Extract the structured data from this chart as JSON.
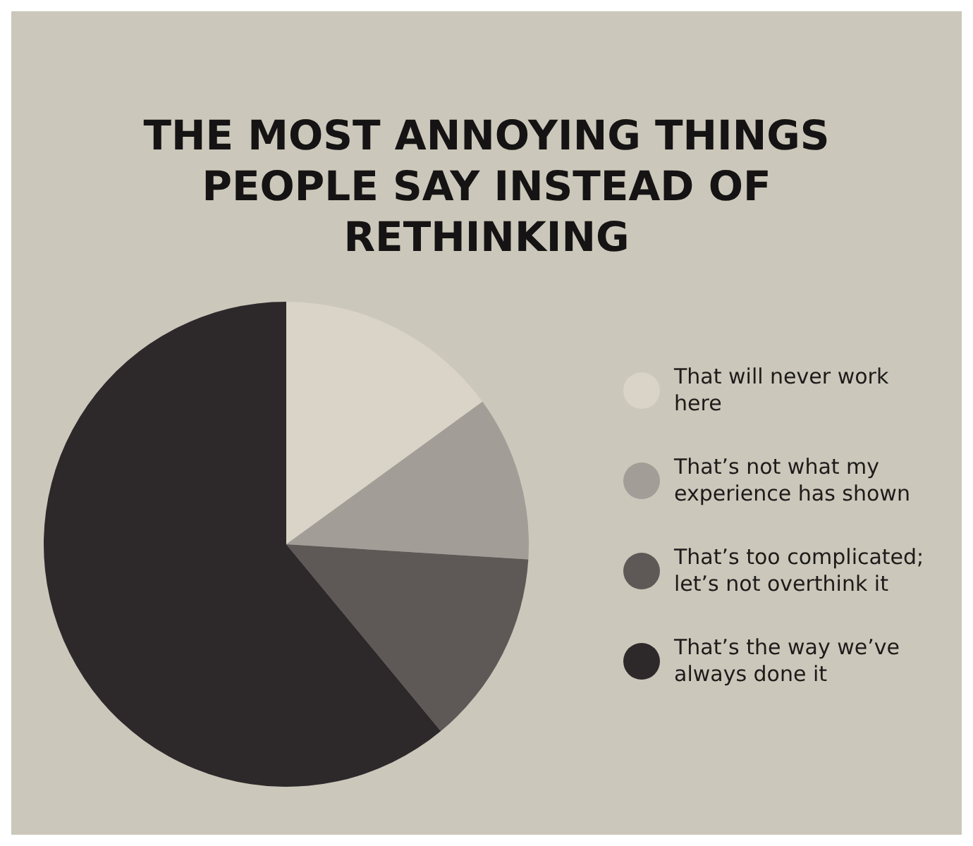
{
  "chart_data": {
    "type": "pie",
    "title": "THE MOST ANNOYING THINGS PEOPLE SAY INSTEAD OF RETHINKING",
    "categories": [
      "That will never work here",
      "That’s not what my experience has shown",
      "That’s too complicated; let’s not overthink it",
      "That’s the way we’ve always done it"
    ],
    "values": [
      15,
      11,
      13,
      61
    ],
    "colors": [
      "#d9d4c7",
      "#a29d97",
      "#5e5957",
      "#2d292b"
    ],
    "legend": "right"
  }
}
